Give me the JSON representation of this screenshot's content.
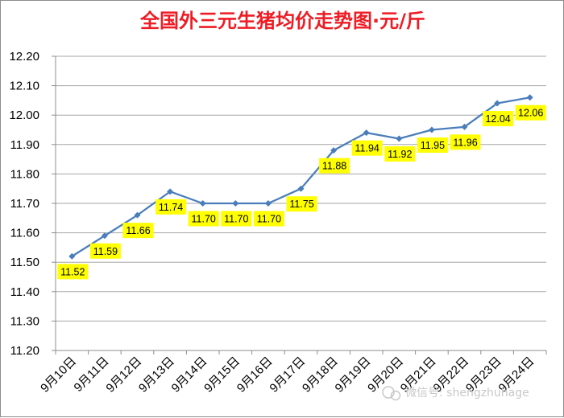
{
  "chart_data": {
    "type": "line",
    "title": "全国外三元生猪均价走势图·元/斤",
    "xlabel": "",
    "ylabel": "",
    "ylim": [
      11.2,
      12.2
    ],
    "yticks": [
      "12.20",
      "12.10",
      "12.00",
      "11.90",
      "11.80",
      "11.70",
      "11.60",
      "11.50",
      "11.40",
      "11.30",
      "11.20"
    ],
    "grid": true,
    "legend": "none",
    "categories": [
      "9月10日",
      "9月11日",
      "9月12日",
      "9月13日",
      "9月14日",
      "9月15日",
      "9月16日",
      "9月17日",
      "9月18日",
      "9月19日",
      "9月20日",
      "9月21日",
      "9月22日",
      "9月23日",
      "9月24日"
    ],
    "values": [
      11.52,
      11.59,
      11.66,
      11.74,
      11.7,
      11.7,
      11.7,
      11.75,
      11.88,
      11.94,
      11.92,
      11.95,
      11.96,
      12.04,
      12.06
    ],
    "data_labels": [
      "11.52",
      "11.59",
      "11.66",
      "11.74",
      "11.70",
      "11.70",
      "11.70",
      "11.75",
      "11.88",
      "11.94",
      "11.92",
      "11.95",
      "11.96",
      "12.04",
      "12.06"
    ],
    "colors": {
      "title": "#ee1c25",
      "line": "#4a7ebb",
      "label_bg": "#ffff00",
      "grid": "#a6a6a6"
    }
  },
  "watermark": {
    "icon": "wechat-icon",
    "text": "微信号: shengzhuhage"
  }
}
